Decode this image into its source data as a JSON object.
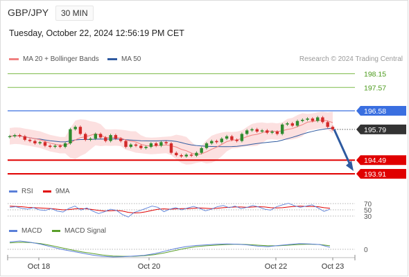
{
  "header": {
    "pair": "GBP/JPY",
    "timeframe": "30 MIN",
    "datetime": "Tuesday, October 22, 2024 12:56:19 PM CET"
  },
  "legend": {
    "ma20": "MA 20 + Bollinger Bands",
    "ma50": "MA 50",
    "credit": "Research © 2024 Trading Central",
    "rsi": "RSI",
    "rsi_ma": "9MA",
    "macd": "MACD",
    "macd_signal": "MACD Signal"
  },
  "colors": {
    "ma20": "#f08080",
    "ma50": "#2e5aa0",
    "band": "#fbd5d5",
    "resistance": "#7dbb4a",
    "pivot": "#3a6fe0",
    "support": "#e00000",
    "last": "#333333",
    "rsi": "#5a7fd8",
    "rsi_ma": "#e00000",
    "macd": "#5a7fd8",
    "macd_signal": "#5a9e2a",
    "up": "#2e8b2e",
    "down": "#d42a2a"
  },
  "levels": [
    {
      "label": "198.15",
      "value": 198.15,
      "style": "text",
      "role": "resistance"
    },
    {
      "label": "197.57",
      "value": 197.57,
      "style": "text",
      "role": "resistance"
    },
    {
      "label": "196.58",
      "value": 196.58,
      "style": "tag",
      "role": "pivot"
    },
    {
      "label": "195.79",
      "value": 195.79,
      "style": "tag",
      "role": "last"
    },
    {
      "label": "194.49",
      "value": 194.49,
      "style": "tag",
      "role": "support"
    },
    {
      "label": "193.91",
      "value": 193.91,
      "style": "tag",
      "role": "support"
    }
  ],
  "chart_data": {
    "type": "candlestick",
    "x_labels": [
      "Oct 18",
      "Oct 20",
      "Oct 22",
      "Oct 23"
    ],
    "last_price": 195.79,
    "forecast_target": 193.91,
    "price_series": [
      195.5,
      195.55,
      195.5,
      195.35,
      195.3,
      195.2,
      195.25,
      195.1,
      195.05,
      195.1,
      195.05,
      195.2,
      195.8,
      195.9,
      195.6,
      195.35,
      195.4,
      195.6,
      195.45,
      195.3,
      195.55,
      195.4,
      195.3,
      195.05,
      195.15,
      195.1,
      195.0,
      195.05,
      195.2,
      195.1,
      195.25,
      195.2,
      194.8,
      194.7,
      194.65,
      194.72,
      194.68,
      194.8,
      195.0,
      195.2,
      195.3,
      195.25,
      195.4,
      195.5,
      195.35,
      195.3,
      195.6,
      195.75,
      195.8,
      195.7,
      195.75,
      195.65,
      195.7,
      195.6,
      196.0,
      196.05,
      195.95,
      196.15,
      196.2,
      196.25,
      196.15,
      196.3,
      196.1,
      195.9,
      195.79
    ],
    "rsi": {
      "levels": [
        70,
        50,
        30
      ],
      "rsi_values": [
        58,
        60,
        55,
        52,
        57,
        50,
        48,
        54,
        46,
        43,
        55,
        62,
        49,
        56,
        46,
        38,
        44,
        52,
        48,
        35,
        27,
        42,
        48,
        55,
        62,
        58,
        44,
        52,
        57,
        50,
        56,
        61,
        55,
        47,
        52,
        60,
        64,
        57,
        62,
        54,
        58,
        64,
        59,
        52,
        49,
        60,
        66,
        71,
        63,
        58,
        62,
        66,
        56,
        45,
        52
      ],
      "ma_values": [
        62,
        61,
        60,
        58,
        57,
        56,
        55,
        54,
        52,
        50,
        51,
        53,
        54,
        53,
        51,
        48,
        46,
        47,
        48,
        46,
        42,
        40,
        41,
        44,
        48,
        52,
        53,
        52,
        53,
        54,
        54,
        55,
        56,
        55,
        54,
        55,
        57,
        58,
        59,
        59,
        58,
        59,
        60,
        59,
        57,
        56,
        57,
        59,
        61,
        62,
        61,
        61,
        60,
        57,
        55
      ]
    },
    "macd": {
      "levels": [
        0
      ],
      "macd_values": [
        0.23,
        0.26,
        0.22,
        0.16,
        0.08,
        0.0,
        -0.06,
        -0.12,
        -0.18,
        -0.22,
        -0.24,
        -0.23,
        -0.21,
        -0.19,
        -0.14,
        -0.06,
        0.02,
        0.08,
        0.12,
        0.14,
        0.16,
        0.17,
        0.16,
        0.14,
        0.1,
        0.08,
        0.12,
        0.15,
        0.18,
        0.17,
        0.15,
        0.06
      ],
      "signal_values": [
        0.2,
        0.22,
        0.21,
        0.18,
        0.12,
        0.05,
        -0.02,
        -0.08,
        -0.13,
        -0.18,
        -0.21,
        -0.22,
        -0.22,
        -0.2,
        -0.17,
        -0.11,
        -0.04,
        0.03,
        0.08,
        0.11,
        0.13,
        0.15,
        0.16,
        0.15,
        0.13,
        0.11,
        0.11,
        0.13,
        0.15,
        0.16,
        0.15,
        0.11
      ]
    }
  }
}
